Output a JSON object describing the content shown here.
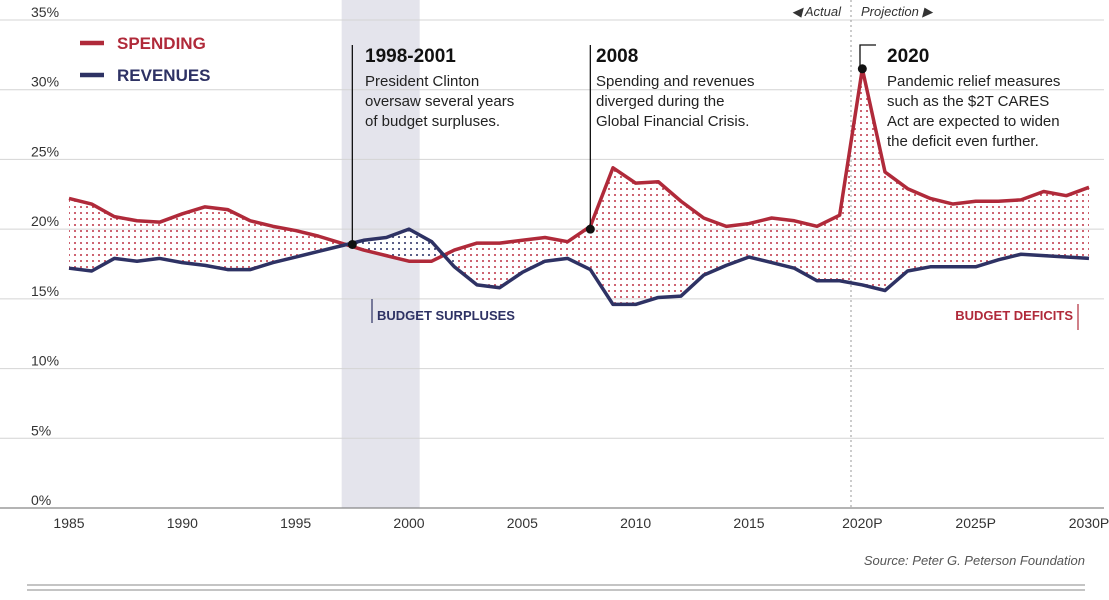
{
  "chart_data": {
    "type": "line",
    "legend": [
      {
        "label": "SPENDING",
        "color": "#b02a3a"
      },
      {
        "label": "REVENUES",
        "color": "#2e3264"
      }
    ],
    "y_ticks": [
      "0%",
      "5%",
      "10%",
      "15%",
      "20%",
      "25%",
      "30%",
      "35%"
    ],
    "x_ticks": [
      {
        "label": "1985",
        "year": 1985
      },
      {
        "label": "1990",
        "year": 1990
      },
      {
        "label": "1995",
        "year": 1995
      },
      {
        "label": "2000",
        "year": 2000
      },
      {
        "label": "2005",
        "year": 2005
      },
      {
        "label": "2010",
        "year": 2010
      },
      {
        "label": "2015",
        "year": 2015
      },
      {
        "label": "2020P",
        "year": 2020
      },
      {
        "label": "2025P",
        "year": 2025
      },
      {
        "label": "2030P",
        "year": 2030
      }
    ],
    "ylim": [
      0,
      35
    ],
    "xlim": [
      1985,
      2030
    ],
    "years": [
      1985,
      1986,
      1987,
      1988,
      1989,
      1990,
      1991,
      1992,
      1993,
      1994,
      1995,
      1996,
      1997,
      1998,
      1999,
      2000,
      2001,
      2002,
      2003,
      2004,
      2005,
      2006,
      2007,
      2008,
      2009,
      2010,
      2011,
      2012,
      2013,
      2014,
      2015,
      2016,
      2017,
      2018,
      2019,
      2020,
      2021,
      2022,
      2023,
      2024,
      2025,
      2026,
      2027,
      2028,
      2029,
      2030
    ],
    "series": [
      {
        "name": "SPENDING",
        "color": "#b02a3a",
        "values": [
          22.2,
          21.8,
          20.9,
          20.6,
          20.5,
          21.1,
          21.6,
          21.4,
          20.6,
          20.2,
          19.9,
          19.5,
          19.0,
          18.5,
          18.1,
          17.7,
          17.7,
          18.5,
          19.0,
          19.0,
          19.2,
          19.4,
          19.1,
          20.2,
          24.4,
          23.3,
          23.4,
          22.0,
          20.8,
          20.2,
          20.4,
          20.8,
          20.6,
          20.2,
          21.0,
          31.5,
          24.1,
          22.9,
          22.2,
          21.8,
          22.0,
          22.0,
          22.1,
          22.7,
          22.4,
          23.0
        ]
      },
      {
        "name": "REVENUES",
        "color": "#2e3264",
        "values": [
          17.2,
          17.0,
          17.9,
          17.7,
          17.9,
          17.6,
          17.4,
          17.1,
          17.1,
          17.6,
          18.0,
          18.4,
          18.8,
          19.2,
          19.4,
          20.0,
          19.1,
          17.3,
          16.0,
          15.8,
          16.9,
          17.7,
          17.9,
          17.1,
          14.6,
          14.6,
          15.1,
          15.2,
          16.7,
          17.4,
          18.0,
          17.6,
          17.2,
          16.3,
          16.3,
          16.0,
          15.6,
          17.0,
          17.3,
          17.3,
          17.3,
          17.8,
          18.2,
          18.1,
          18.0,
          17.9
        ]
      }
    ],
    "shaded_period": {
      "start": 1998,
      "end": 2001
    },
    "projection_start": 2019.5,
    "period_labels": {
      "actual": "◀ Actual",
      "projection": "Projection ▶"
    },
    "band_labels": {
      "surplus": "BUDGET SURPLUSES",
      "deficit": "BUDGET DEFICITS"
    },
    "annotations": [
      {
        "title": "1998-2001",
        "lines": [
          "President Clinton",
          "oversaw several years",
          "of budget surpluses."
        ],
        "point_year": 1997.5,
        "point_value": 18.9
      },
      {
        "title": "2008",
        "lines": [
          "Spending and revenues",
          "diverged during the",
          "Global Financial Crisis."
        ],
        "point_year": 2008,
        "point_value": 20.0
      },
      {
        "title": "2020",
        "lines": [
          "Pandemic relief measures",
          "such as the $2T CARES",
          "Act are expected to widen",
          "the deficit even further."
        ],
        "point_year": 2020,
        "point_value": 31.5
      }
    ],
    "source": "Source: Peter G. Peterson Foundation"
  }
}
